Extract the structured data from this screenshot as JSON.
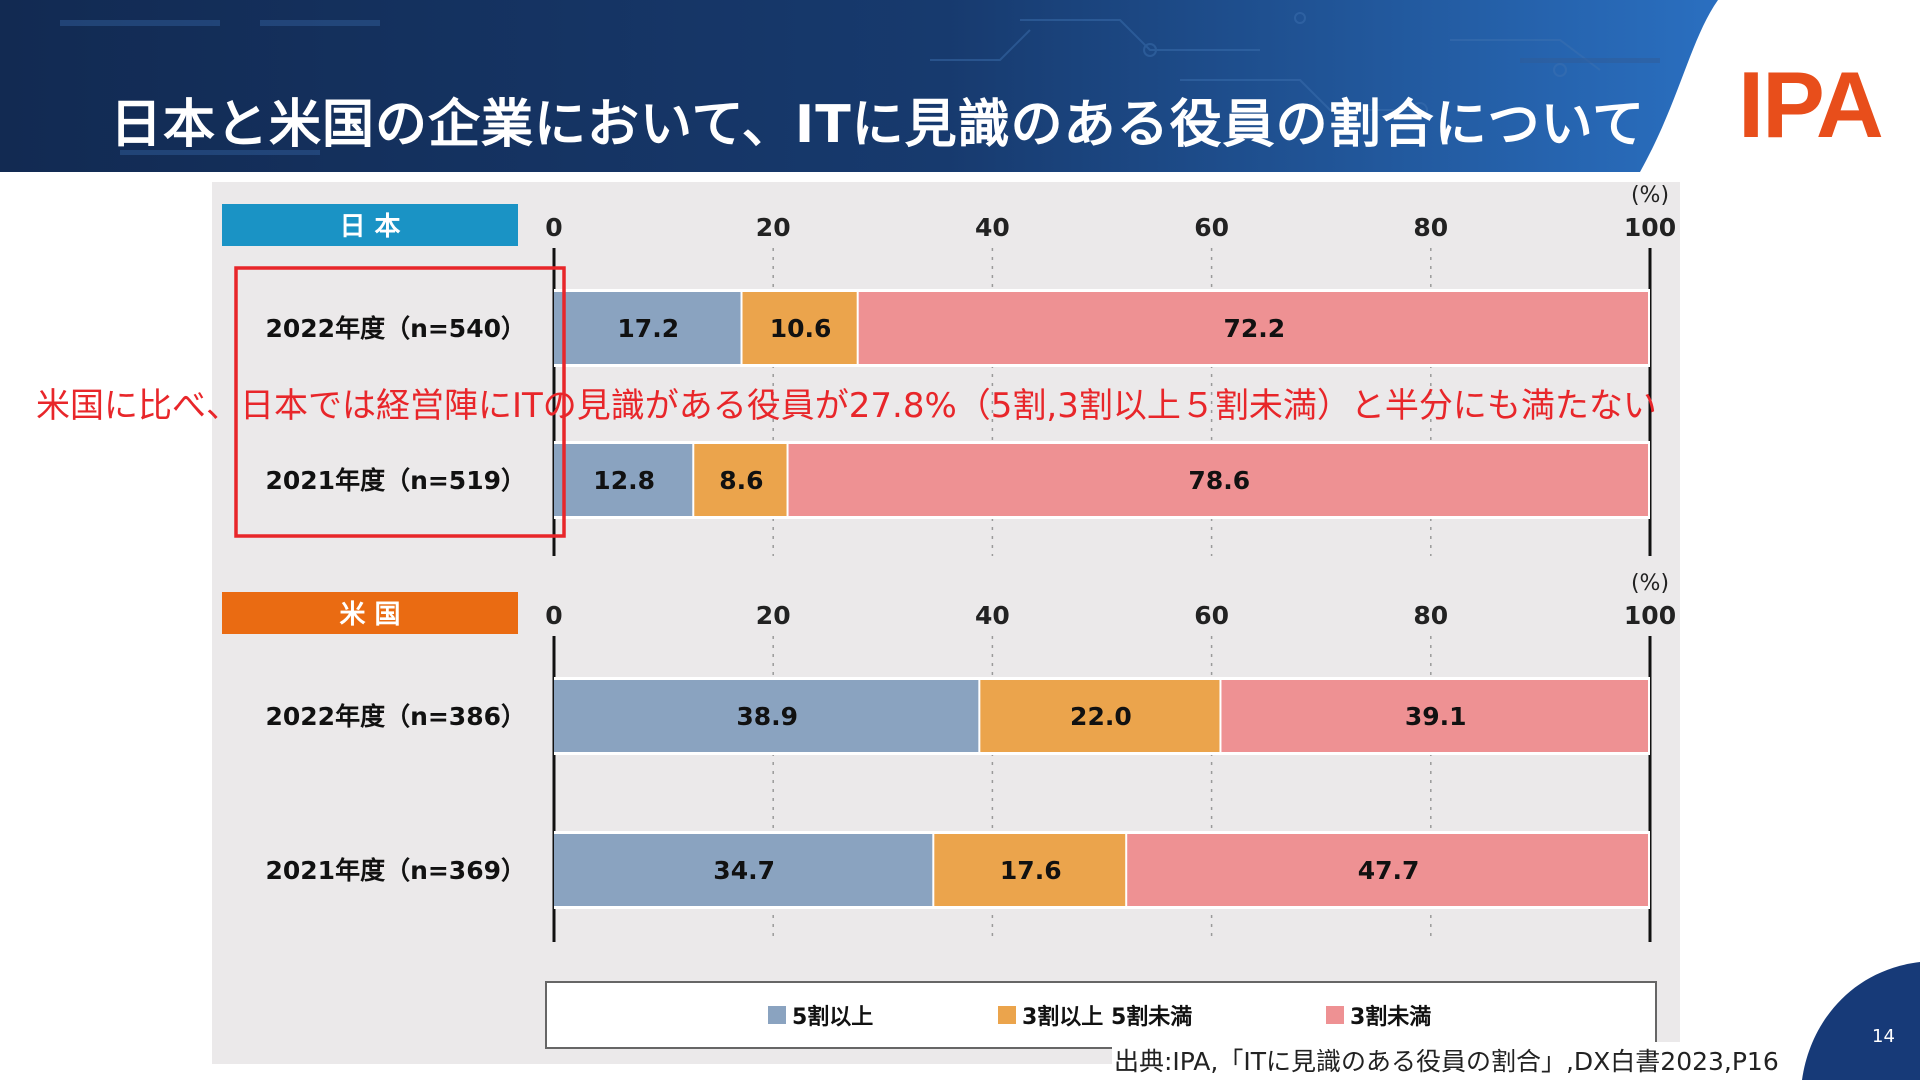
{
  "slide": {
    "title": "日本と米国の企業において、ITに見識のある役員の割合について",
    "logo": "IPA",
    "annotation": "米国に比べ、日本では経営陣にITの見識がある役員が27.8%（5割,3割以上５割未満）と半分にも満たない",
    "source": "出典:IPA,「ITに見識のある役員の割合」,DX白書2023,P16",
    "page_number": "14"
  },
  "colors": {
    "header_dark": "#16305a",
    "header_mid": "#1e4f8c",
    "header_light": "#2a6fc0",
    "logo": "#e84e1b",
    "japan_label_bg": "#1a93c5",
    "us_label_bg": "#ea6b12",
    "series_5wari": "#8aa3c0",
    "series_3to5": "#eba44c",
    "series_under3": "#ee9193",
    "highlight": "#e8262a"
  },
  "chart_data": [
    {
      "type": "bar",
      "orientation": "horizontal-stacked",
      "panel_label": "日 本",
      "unit": "(%)",
      "xlim": [
        0,
        100
      ],
      "ticks": [
        "0",
        "20",
        "40",
        "60",
        "80",
        "100"
      ],
      "categories": [
        "2022年度（n=540）",
        "2021年度（n=519）"
      ],
      "series": [
        {
          "name": "5割以上",
          "values": [
            17.2,
            12.8
          ]
        },
        {
          "name": "3割以上 5割未満",
          "values": [
            10.6,
            8.6
          ]
        },
        {
          "name": "3割未満",
          "values": [
            72.2,
            78.6
          ]
        }
      ]
    },
    {
      "type": "bar",
      "orientation": "horizontal-stacked",
      "panel_label": "米 国",
      "unit": "(%)",
      "xlim": [
        0,
        100
      ],
      "ticks": [
        "0",
        "20",
        "40",
        "60",
        "80",
        "100"
      ],
      "categories": [
        "2022年度（n=386）",
        "2021年度（n=369）"
      ],
      "series": [
        {
          "name": "5割以上",
          "values": [
            38.9,
            34.7
          ]
        },
        {
          "name": "3割以上 5割未満",
          "values": [
            22.0,
            17.6
          ]
        },
        {
          "name": "3割未満",
          "values": [
            39.1,
            47.7
          ]
        }
      ]
    }
  ],
  "legend": [
    "5割以上",
    "3割以上 5割未満",
    "3割未満"
  ]
}
